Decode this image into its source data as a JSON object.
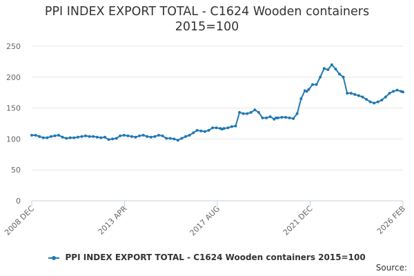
{
  "chart_data": {
    "type": "line",
    "title": "PPI INDEX EXPORT TOTAL - C1624 Wooden containers 2015=100",
    "title_lines": [
      "PPI INDEX EXPORT TOTAL - C1624 Wooden containers",
      "2015=100"
    ],
    "ylim": [
      0,
      250
    ],
    "y_ticks": [
      0,
      50,
      100,
      150,
      200,
      250
    ],
    "x_tick_labels": [
      "2008 DEC",
      "2013 APR",
      "2017 AUG",
      "2021 DEC",
      "2026 FEB"
    ],
    "grid": "horizontal",
    "legend": "bottom",
    "series_color": "#1f78b4",
    "series": [
      {
        "name": "PPI INDEX EXPORT TOTAL - C1624 Wooden containers 2015=100",
        "x": [
          0,
          4,
          8,
          12,
          16,
          20,
          24,
          28,
          32,
          36,
          40,
          44,
          48,
          52,
          56,
          60,
          64,
          68,
          72,
          76,
          80,
          84,
          88,
          92,
          96,
          100,
          104,
          108,
          112,
          116,
          120,
          124,
          128,
          132,
          136,
          140,
          144,
          148,
          152,
          156,
          160,
          164,
          168,
          172,
          176,
          180,
          184,
          188,
          192,
          196,
          198,
          200,
          204,
          208,
          212,
          216,
          220,
          224,
          228,
          232,
          236,
          240,
          244,
          248,
          252,
          254,
          256,
          260,
          264,
          268,
          272,
          276,
          280,
          284,
          286,
          288,
          292,
          296,
          300,
          304,
          308,
          312,
          316,
          320,
          324,
          328,
          332,
          336,
          340,
          344,
          348,
          352,
          356,
          360,
          364,
          368,
          372,
          376,
          380,
          384,
          386
        ],
        "values": [
          106,
          106,
          104,
          102,
          102,
          104,
          105,
          106,
          103,
          101,
          102,
          102,
          103,
          104,
          105,
          104,
          104,
          103,
          102,
          103,
          99,
          100,
          101,
          105,
          106,
          105,
          104,
          103,
          105,
          106,
          104,
          103,
          104,
          106,
          105,
          101,
          101,
          100,
          98,
          101,
          104,
          106,
          110,
          114,
          113,
          112,
          114,
          118,
          118,
          117,
          116,
          117,
          118,
          120,
          121,
          143,
          141,
          141,
          143,
          147,
          143,
          134,
          134,
          136,
          132,
          134,
          134,
          135,
          135,
          134,
          133,
          141,
          165,
          178,
          177,
          180,
          188,
          188,
          200,
          214,
          212,
          220,
          213,
          205,
          200,
          174,
          174,
          172,
          170,
          168,
          164,
          160,
          158,
          160,
          163,
          168,
          174,
          177,
          179,
          177,
          176
        ]
      }
    ],
    "source_label": "Source:"
  }
}
